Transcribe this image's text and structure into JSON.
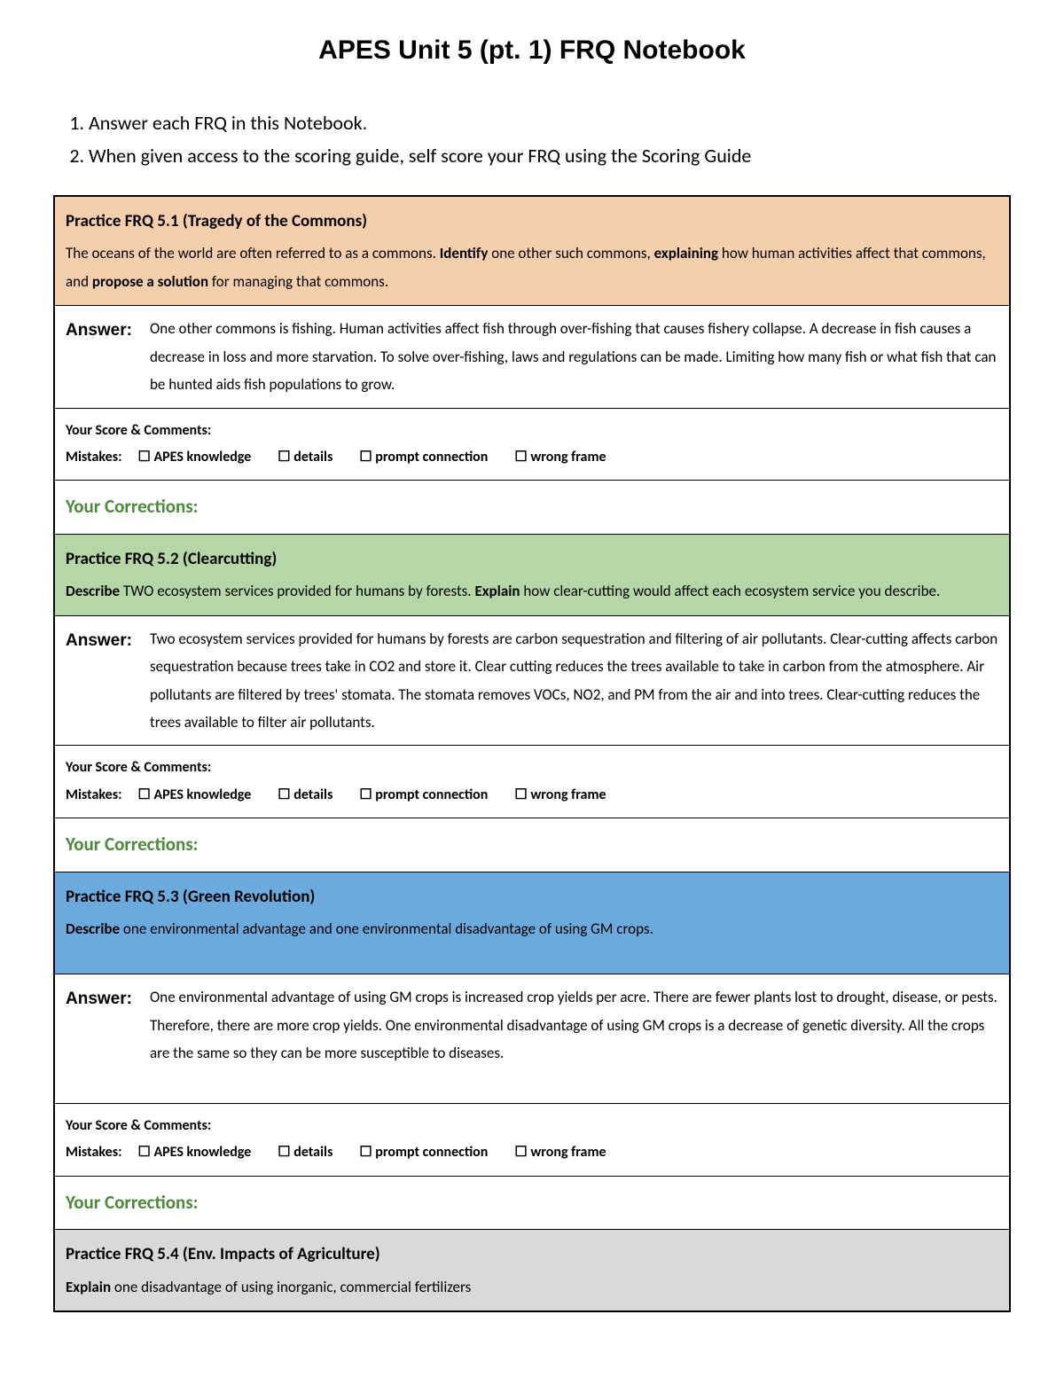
{
  "title": "APES Unit 5 (pt. 1) FRQ Notebook",
  "instructions": [
    "Answer each FRQ in this Notebook.",
    "When given access to the scoring guide, self score your FRQ using the Scoring Guide"
  ],
  "labels": {
    "answer": "Answer:",
    "score_comments": "Your Score & Comments:",
    "mistakes": "Mistakes:",
    "corrections": "Your Corrections:",
    "checkbox_glyph": "☐"
  },
  "mistake_options": [
    "APES knowledge",
    "details",
    "prompt connection",
    "wrong frame"
  ],
  "frqs": [
    {
      "bg": "bg-orange",
      "title": "Practice FRQ 5.1 (Tragedy of the Commons)",
      "prompt_html": "The oceans of the world are often referred to as a commons. <b>Identify</b> one other such commons, <b>explaining</b> how human activities affect that commons, and <b>propose a solution</b> for managing that commons.",
      "answer": "One other commons is fishing. Human activities affect fish through over-fishing that causes fishery collapse. A decrease in fish causes a decrease in loss and more starvation. To solve over-fishing, laws and regulations can be made. Limiting how many fish or what fish that can be hunted aids fish populations to grow."
    },
    {
      "bg": "bg-green",
      "title": "Practice FRQ 5.2 (Clearcutting)",
      "prompt_html": "<b>Describe</b> TWO ecosystem services provided for humans by forests. <b>Explain</b> how clear-cutting would affect each ecosystem service you describe.",
      "answer": "Two ecosystem services provided for humans by forests are carbon sequestration and filtering of air pollutants. Clear-cutting affects carbon sequestration because trees take in CO2 and store it. Clear cutting reduces the trees available to take in carbon from the atmosphere. Air pollutants are filtered by trees' stomata. The stomata removes VOCs, NO2, and PM from the air and into trees. Clear-cutting reduces the trees available to filter air pollutants."
    },
    {
      "bg": "bg-blue",
      "title": "Practice FRQ 5.3 (Green Revolution)",
      "prompt_html": "<b>Describe</b> one environmental advantage and one environmental disadvantage of using GM crops.",
      "answer": "One environmental advantage of using GM crops is increased crop yields per acre. There are fewer plants lost to drought, disease, or pests. Therefore, there are more crop yields. One environmental disadvantage of using GM crops is a decrease of genetic diversity. All the crops are the same so they can be more susceptible to diseases.",
      "answer_extra_padding": true
    },
    {
      "bg": "bg-gray",
      "title": "Practice FRQ 5.4 (Env. Impacts of Agriculture)",
      "prompt_html": "<b>Explain</b> one disadvantage of using inorganic, commercial fertilizers",
      "partial": true
    }
  ]
}
